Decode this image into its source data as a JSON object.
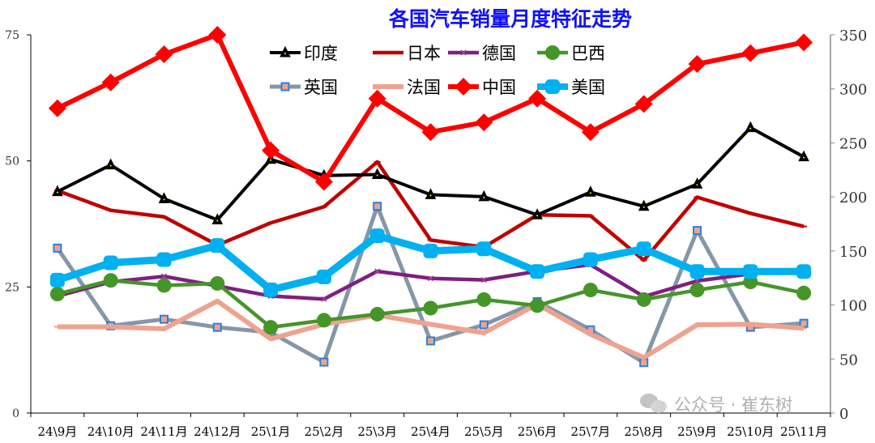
{
  "chart_data": {
    "type": "line",
    "title": "各国汽车销量月度特征走势",
    "categories": [
      "24\\9月",
      "24\\10月",
      "24\\11月",
      "24\\12月",
      "25\\1月",
      "25\\2月",
      "25\\3月",
      "25\\4月",
      "25\\5月",
      "25\\6月",
      "25\\7月",
      "25\\8月",
      "25\\9月",
      "25\\10月",
      "25\\11月"
    ],
    "left_axis": {
      "range": [
        0,
        75
      ],
      "ticks": [
        "0",
        "25",
        "50",
        "75"
      ]
    },
    "right_axis": {
      "range": [
        0,
        350
      ],
      "ticks": [
        "0",
        "50",
        "100",
        "150",
        "200",
        "250",
        "300",
        "350"
      ]
    },
    "legend_placement": "top-center",
    "grid": false,
    "series": [
      {
        "name": "印度",
        "axis": "left",
        "color": "#000000",
        "marker": "triangle",
        "values": [
          43.9,
          49.2,
          42.5,
          38.3,
          50.3,
          47.1,
          47.3,
          43.3,
          42.9,
          39.3,
          43.8,
          41.0,
          45.4,
          56.6,
          50.8
        ]
      },
      {
        "name": "日本",
        "axis": "left",
        "color": "#c00000",
        "marker": "dash",
        "values": [
          44.1,
          40.2,
          38.9,
          33.3,
          37.7,
          40.9,
          49.8,
          34.3,
          32.9,
          39.3,
          39.1,
          30.3,
          42.8,
          39.6,
          37.0
        ]
      },
      {
        "name": "德国",
        "axis": "left",
        "color": "#7f1f7f",
        "marker": "x",
        "values": [
          23.2,
          26.0,
          27.1,
          25.2,
          23.2,
          22.6,
          28.1,
          26.7,
          26.4,
          28.1,
          29.4,
          23.1,
          26.2,
          27.6,
          null
        ]
      },
      {
        "name": "巴西",
        "axis": "left",
        "color": "#459529",
        "marker": "circle",
        "values": [
          23.6,
          26.3,
          25.3,
          25.7,
          17.0,
          18.4,
          19.6,
          20.8,
          22.5,
          21.3,
          24.4,
          22.5,
          24.4,
          26.0,
          23.8
        ]
      },
      {
        "name": "英国",
        "axis": "left",
        "color": "#8497a8",
        "marker": "square",
        "values": [
          32.7,
          17.3,
          18.6,
          17.0,
          16.0,
          10.1,
          41.0,
          14.3,
          17.5,
          22.1,
          16.5,
          10.0,
          36.2,
          17.0,
          17.8
        ]
      },
      {
        "name": "法国",
        "axis": "left",
        "color": "#eda390",
        "marker": "dash",
        "values": [
          17.1,
          17.1,
          16.7,
          22.2,
          14.7,
          17.6,
          19.4,
          17.6,
          15.9,
          21.6,
          15.6,
          11.0,
          17.5,
          17.6,
          16.8
        ]
      },
      {
        "name": "中国",
        "axis": "right",
        "color": "#ff0000",
        "marker": "diamond",
        "values": [
          282,
          306,
          332,
          350,
          243,
          214,
          291,
          260,
          269,
          291,
          260,
          286,
          323,
          333,
          343
        ]
      },
      {
        "name": "美国",
        "axis": "right",
        "color": "#00b0f0",
        "marker": "roundsquare",
        "values": [
          123,
          139,
          142,
          155,
          114,
          126,
          164,
          150,
          152,
          131,
          142,
          152,
          131,
          131,
          131
        ]
      }
    ]
  },
  "watermark": "公众号 · 崔东树"
}
